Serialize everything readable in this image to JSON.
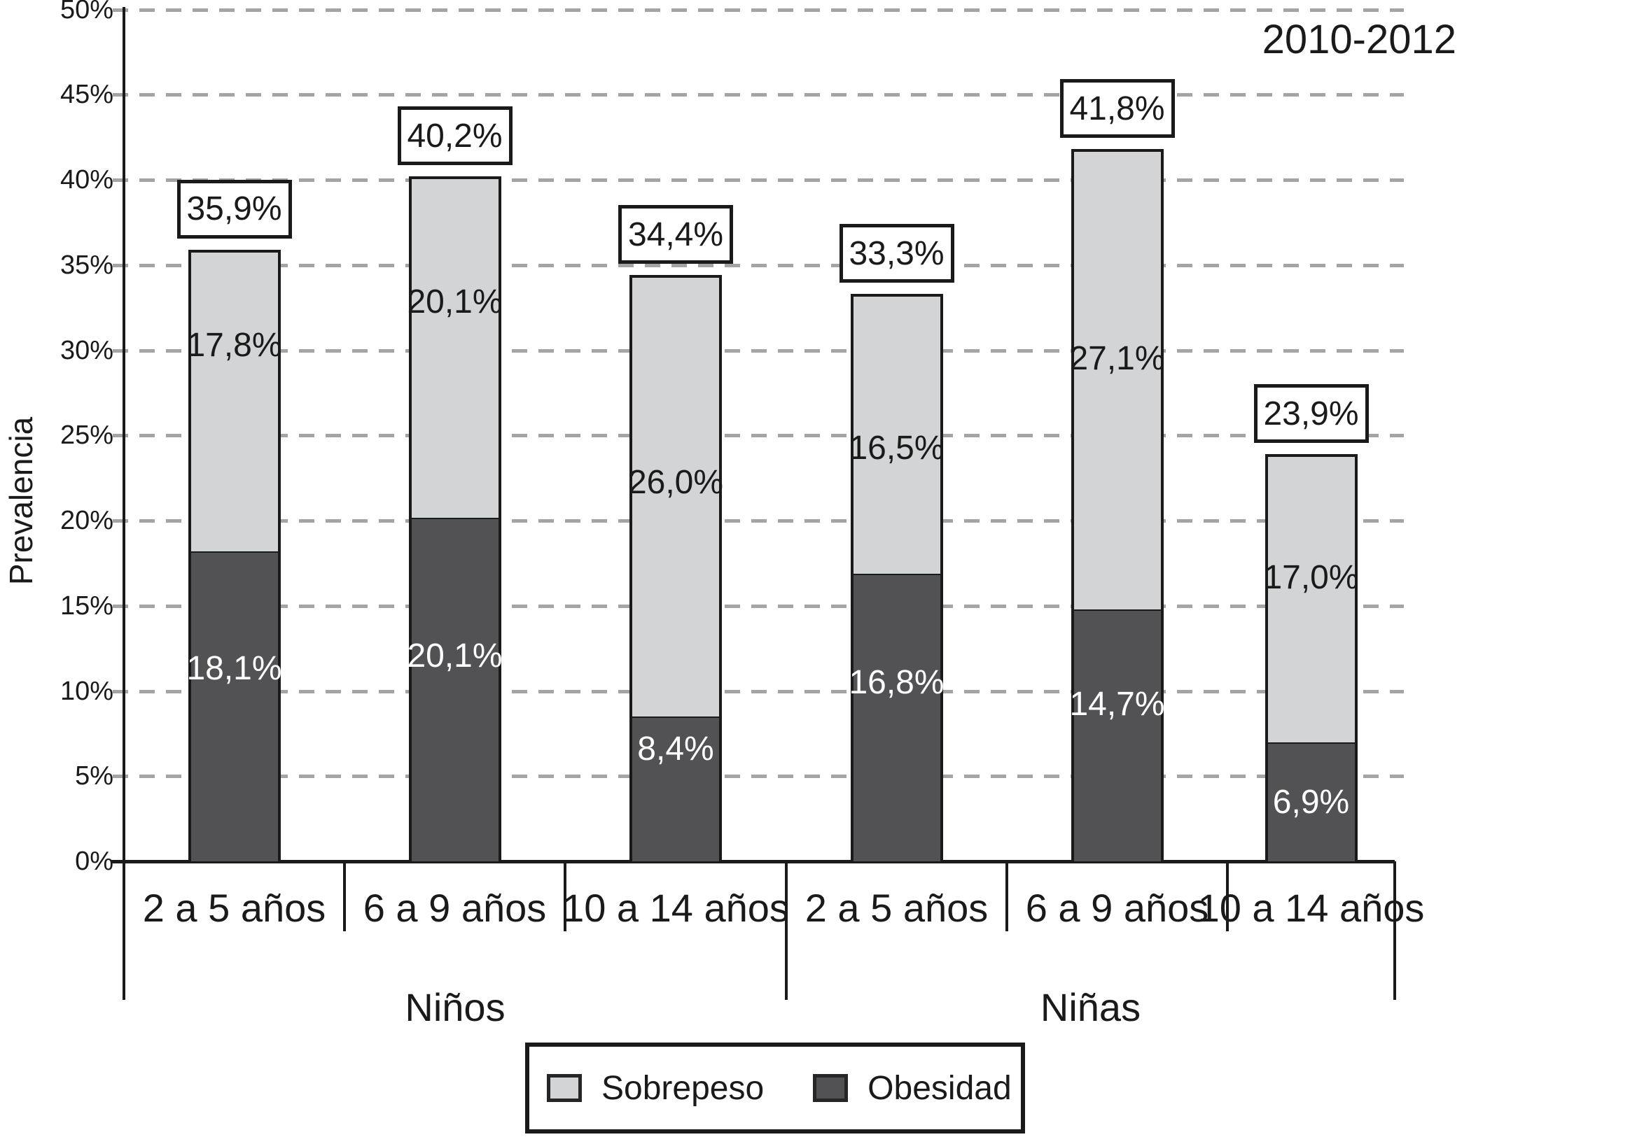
{
  "chart_data": {
    "type": "bar",
    "stacked": true,
    "title": "2010-2012",
    "ylabel": "Prevalencia",
    "xlabel": "",
    "ylim": [
      0,
      50
    ],
    "y_tick_step": 5,
    "y_ticks": [
      "0%",
      "5%",
      "10%",
      "15%",
      "20%",
      "25%",
      "30%",
      "35%",
      "40%",
      "45%",
      "50%"
    ],
    "grid": "horizontal dashed",
    "legend_position": "bottom",
    "series_order_bottom_to_top": [
      "Obesidad",
      "Sobrepeso"
    ],
    "legend": {
      "entries": [
        {
          "label": "Sobrepeso",
          "color": "#d3d4d5"
        },
        {
          "label": "Obesidad",
          "color": "#525254"
        }
      ]
    },
    "colors": {
      "sobrepeso": "#d3d4d5",
      "obesidad": "#525254",
      "bar_border": "#1a1a1a",
      "gridline": "#a4a4a4",
      "axis": "#1a1a1a",
      "label_on_dark": "#ffffff",
      "label_on_light": "#1a1a1a"
    },
    "groups": [
      {
        "label": "Niños",
        "bars": [
          {
            "category": "2 a 5 años",
            "obesidad": 18.1,
            "obesidad_label": "18,1%",
            "sobrepeso": 17.8,
            "sobrepeso_label": "17,8%",
            "total": 35.9,
            "total_label": "35,9%"
          },
          {
            "category": "6 a 9 años",
            "obesidad": 20.1,
            "obesidad_label": "20,1%",
            "sobrepeso": 20.1,
            "sobrepeso_label": "20,1%",
            "total": 40.2,
            "total_label": "40,2%"
          },
          {
            "category": "10 a 14 años",
            "obesidad": 8.4,
            "obesidad_label": "8,4%",
            "sobrepeso": 26.0,
            "sobrepeso_label": "26,0%",
            "total": 34.4,
            "total_label": "34,4%"
          }
        ]
      },
      {
        "label": "Niñas",
        "bars": [
          {
            "category": "2 a 5 años",
            "obesidad": 16.8,
            "obesidad_label": "16,8%",
            "sobrepeso": 16.5,
            "sobrepeso_label": "16,5%",
            "total": 33.3,
            "total_label": "33,3%"
          },
          {
            "category": "6 a 9 años",
            "obesidad": 14.7,
            "obesidad_label": "14,7%",
            "sobrepeso": 27.1,
            "sobrepeso_label": "27,1%",
            "total": 41.8,
            "total_label": "41,8%"
          },
          {
            "category": "10 a 14 años",
            "obesidad": 6.9,
            "obesidad_label": "6,9%",
            "sobrepeso": 17.0,
            "sobrepeso_label": "17,0%",
            "total": 23.9,
            "total_label": "23,9%"
          }
        ]
      }
    ]
  }
}
